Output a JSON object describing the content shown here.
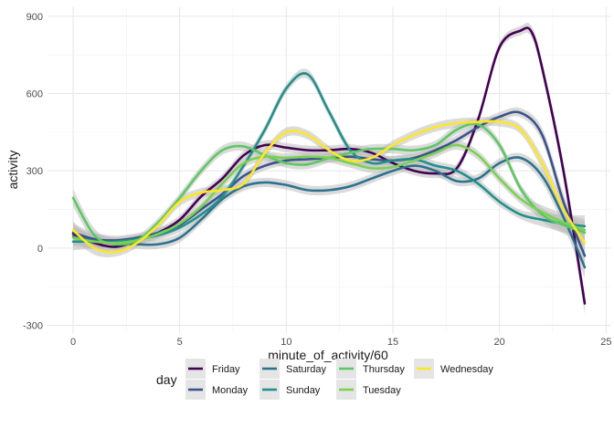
{
  "chart_data": {
    "type": "line",
    "xlabel": "minute_of_activity/60",
    "ylabel": "activity",
    "xlim": [
      -1.2,
      25.2
    ],
    "ylim": [
      -330,
      935
    ],
    "x_ticks": [
      0,
      5,
      10,
      15,
      20,
      25
    ],
    "x_tick_labels": [
      "0",
      "5",
      "10",
      "15",
      "20",
      "25"
    ],
    "y_ticks": [
      -300,
      0,
      300,
      600,
      900
    ],
    "y_tick_labels": [
      "-300",
      "0",
      "300",
      "600",
      "900"
    ],
    "grid": true,
    "confidence_band": true,
    "legend": {
      "title": "day",
      "placement": "bottom"
    },
    "series": [
      {
        "name": "Friday",
        "color": "#440154",
        "x": [
          0,
          1,
          2,
          3,
          4,
          5,
          6,
          7,
          8,
          9,
          10,
          11,
          12,
          13,
          14,
          15,
          16,
          17,
          18,
          19,
          20,
          21,
          21.5,
          22,
          23,
          24
        ],
        "y": [
          55,
          20,
          5,
          30,
          60,
          110,
          200,
          270,
          360,
          400,
          390,
          380,
          380,
          385,
          370,
          330,
          300,
          290,
          310,
          500,
          780,
          845,
          840,
          700,
          300,
          -215
        ]
      },
      {
        "name": "Monday",
        "color": "#3b528b",
        "x": [
          0,
          1,
          2,
          3,
          4,
          5,
          6,
          7,
          8,
          9,
          10,
          11,
          12,
          13,
          14,
          15,
          16,
          17,
          18,
          19,
          20,
          21,
          22,
          23,
          24
        ],
        "y": [
          60,
          35,
          30,
          40,
          60,
          90,
          150,
          210,
          280,
          320,
          340,
          345,
          350,
          355,
          345,
          340,
          350,
          380,
          420,
          470,
          510,
          525,
          440,
          180,
          -30
        ]
      },
      {
        "name": "Saturday",
        "color": "#2c728e",
        "x": [
          0,
          1,
          2,
          3,
          4,
          5,
          6,
          7,
          8,
          9,
          10,
          11,
          12,
          13,
          14,
          15,
          16,
          17,
          18,
          19,
          20,
          21,
          22,
          23,
          24
        ],
        "y": [
          45,
          30,
          20,
          15,
          15,
          40,
          110,
          190,
          240,
          255,
          245,
          225,
          225,
          240,
          270,
          300,
          320,
          300,
          260,
          270,
          330,
          350,
          280,
          120,
          -75
        ]
      },
      {
        "name": "Sunday",
        "color": "#21908d",
        "x": [
          0,
          1,
          2,
          3,
          4,
          5,
          6,
          7,
          8,
          9,
          10,
          11,
          12,
          13,
          14,
          15,
          16,
          17,
          18,
          19,
          20,
          21,
          22,
          23,
          24
        ],
        "y": [
          25,
          25,
          25,
          35,
          50,
          80,
          130,
          200,
          320,
          460,
          620,
          675,
          530,
          380,
          330,
          340,
          345,
          320,
          300,
          250,
          180,
          130,
          110,
          95,
          85
        ]
      },
      {
        "name": "Thursday",
        "color": "#5dc863",
        "x": [
          0,
          1,
          2,
          3,
          4,
          5,
          6,
          7,
          8,
          9,
          10,
          11,
          12,
          13,
          14,
          15,
          16,
          17,
          18,
          19,
          20,
          21,
          22,
          23,
          24
        ],
        "y": [
          195,
          50,
          15,
          30,
          100,
          195,
          300,
          380,
          395,
          360,
          330,
          325,
          350,
          370,
          385,
          385,
          380,
          400,
          460,
          480,
          400,
          230,
          130,
          90,
          60
        ]
      },
      {
        "name": "Tuesday",
        "color": "#7ad151",
        "x": [
          0,
          1,
          2,
          3,
          4,
          5,
          6,
          7,
          8,
          9,
          10,
          11,
          12,
          13,
          14,
          15,
          16,
          17,
          18,
          19,
          20,
          21,
          22,
          23,
          24
        ],
        "y": [
          40,
          25,
          20,
          30,
          55,
          95,
          160,
          250,
          330,
          355,
          350,
          355,
          350,
          330,
          310,
          315,
          340,
          370,
          400,
          360,
          270,
          190,
          140,
          100,
          70
        ]
      },
      {
        "name": "Wednesday",
        "color": "#fde725",
        "x": [
          0,
          1,
          2,
          3,
          4,
          5,
          6,
          7,
          8,
          9,
          10,
          11,
          12,
          13,
          14,
          15,
          16,
          17,
          18,
          19,
          20,
          21,
          22,
          23,
          24
        ],
        "y": [
          70,
          0,
          -15,
          20,
          90,
          180,
          215,
          225,
          250,
          370,
          450,
          440,
          380,
          340,
          350,
          400,
          440,
          470,
          485,
          490,
          490,
          460,
          330,
          150,
          20
        ]
      }
    ]
  }
}
